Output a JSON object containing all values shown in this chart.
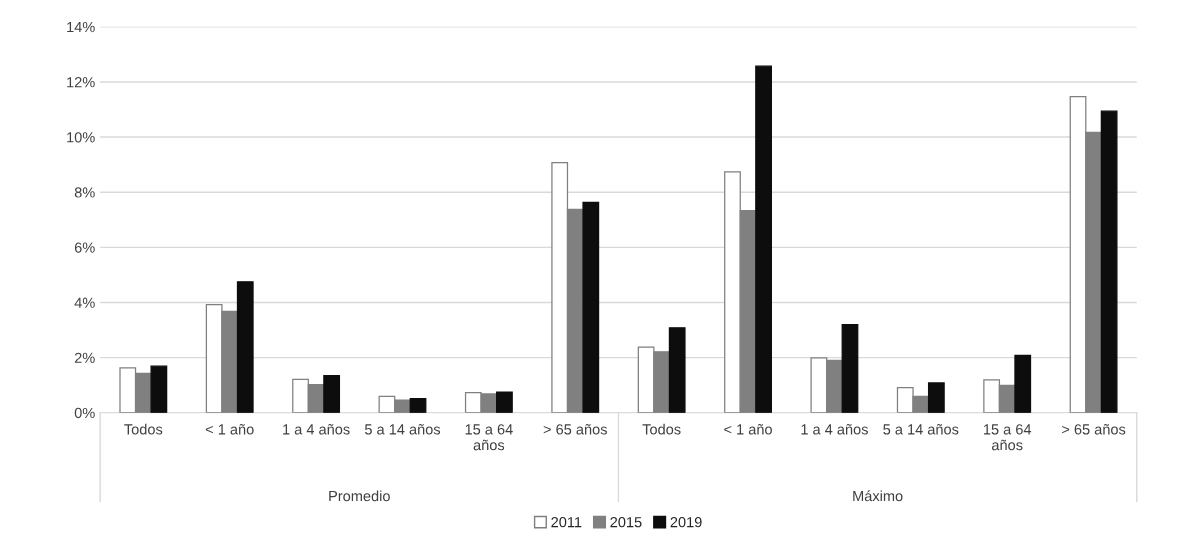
{
  "chart_data": {
    "type": "bar",
    "categories": [
      "Todos",
      "< 1 año",
      "1 a 4 años",
      "5 a 14 años",
      "15 a 64\naños",
      "> 65 años",
      "Todos",
      "< 1 año",
      "1 a 4 años",
      "5 a 14 años",
      "15 a 64\naños",
      "> 65 años"
    ],
    "series": [
      {
        "name": "2011",
        "color": "#ffffff",
        "values": [
          1.63,
          3.92,
          1.21,
          0.59,
          0.73,
          9.07,
          2.38,
          8.74,
          1.99,
          0.91,
          1.19,
          11.47
        ]
      },
      {
        "name": "2015",
        "color": "#808080",
        "values": [
          1.43,
          3.68,
          1.02,
          0.46,
          0.68,
          7.38,
          2.21,
          7.33,
          1.9,
          0.59,
          0.99,
          10.17
        ]
      },
      {
        "name": "2019",
        "color": "#0d0d0d",
        "values": [
          1.69,
          4.75,
          1.35,
          0.51,
          0.75,
          7.63,
          3.08,
          12.57,
          3.2,
          1.08,
          2.08,
          10.94
        ]
      }
    ],
    "ylim": [
      0,
      14
    ],
    "yticks": [
      {
        "value": 0,
        "label": "0%"
      },
      {
        "value": 2,
        "label": "2%"
      },
      {
        "value": 4,
        "label": "4%"
      },
      {
        "value": 6,
        "label": "6%"
      },
      {
        "value": 8,
        "label": "8%"
      },
      {
        "value": 10,
        "label": "10%"
      },
      {
        "value": 12,
        "label": "12%"
      },
      {
        "value": 14,
        "label": "14%"
      }
    ],
    "annotations": [
      "Promedio",
      "Máximo"
    ],
    "grid": "y",
    "legend": "bottom"
  }
}
